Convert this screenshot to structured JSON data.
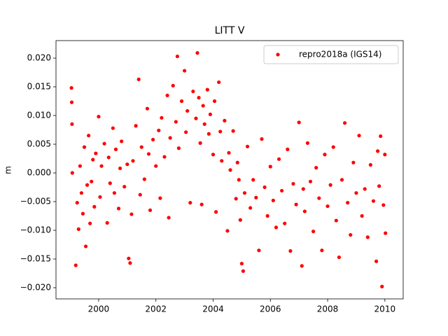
{
  "chart_data": {
    "type": "scatter",
    "title": "LITT V",
    "y_label": "m",
    "legend_position": "upper right",
    "xlim": [
      1998.51,
      2010.64
    ],
    "ylim": [
      -0.02195,
      0.02305
    ],
    "xticks": [
      2000,
      2002,
      2004,
      2006,
      2008,
      2010
    ],
    "yticks": [
      {
        "value": -0.02,
        "label": "−0.020"
      },
      {
        "value": -0.015,
        "label": "−0.015"
      },
      {
        "value": -0.01,
        "label": "−0.010"
      },
      {
        "value": -0.005,
        "label": "−0.005"
      },
      {
        "value": 0,
        "label": "0.000"
      },
      {
        "value": 0.005,
        "label": "0.005"
      },
      {
        "value": 0.01,
        "label": "0.010"
      },
      {
        "value": 0.015,
        "label": "0.015"
      },
      {
        "value": 0.02,
        "label": "0.020"
      }
    ],
    "series": [
      {
        "name": "repro2018a (IGS14)",
        "color": "#ff0000",
        "x": [
          1999.05,
          1999.06,
          1999.07,
          1999.08,
          1999.2,
          1999.25,
          1999.3,
          1999.35,
          1999.4,
          1999.45,
          1999.5,
          1999.55,
          1999.6,
          1999.65,
          1999.7,
          1999.75,
          1999.8,
          1999.85,
          1999.9,
          2000.0,
          2000.05,
          2000.1,
          2000.2,
          2000.3,
          2000.35,
          2000.4,
          2000.5,
          2000.55,
          2000.6,
          2000.7,
          2000.75,
          2000.8,
          2000.9,
          2001.0,
          2001.05,
          2001.1,
          2001.15,
          2001.2,
          2001.3,
          2001.4,
          2001.45,
          2001.5,
          2001.6,
          2001.7,
          2001.75,
          2001.8,
          2001.9,
          2002.0,
          2002.1,
          2002.15,
          2002.2,
          2002.3,
          2002.4,
          2002.45,
          2002.5,
          2002.6,
          2002.7,
          2002.75,
          2002.8,
          2002.9,
          2003.0,
          2003.05,
          2003.1,
          2003.2,
          2003.3,
          2003.4,
          2003.45,
          2003.5,
          2003.55,
          2003.6,
          2003.65,
          2003.7,
          2003.8,
          2003.85,
          2003.9,
          2004.0,
          2004.05,
          2004.1,
          2004.2,
          2004.25,
          2004.3,
          2004.4,
          2004.5,
          2004.55,
          2004.6,
          2004.7,
          2004.8,
          2004.85,
          2004.9,
          2004.95,
          2005.0,
          2005.05,
          2005.1,
          2005.2,
          2005.3,
          2005.4,
          2005.5,
          2005.6,
          2005.7,
          2005.8,
          2005.9,
          2006.0,
          2006.1,
          2006.2,
          2006.3,
          2006.4,
          2006.5,
          2006.6,
          2006.7,
          2006.8,
          2006.9,
          2007.0,
          2007.1,
          2007.15,
          2007.2,
          2007.3,
          2007.4,
          2007.5,
          2007.6,
          2007.7,
          2007.8,
          2007.9,
          2008.0,
          2008.1,
          2008.2,
          2008.3,
          2008.4,
          2008.5,
          2008.6,
          2008.7,
          2008.8,
          2008.9,
          2009.0,
          2009.1,
          2009.2,
          2009.3,
          2009.4,
          2009.5,
          2009.6,
          2009.7,
          2009.75,
          2009.8,
          2009.85,
          2009.9,
          2009.95,
          2010.0,
          2010.02
        ],
        "values": [
          0.0148,
          0.0123,
          0.0085,
          0.0,
          -0.0161,
          -0.0052,
          -0.0098,
          0.0012,
          -0.0035,
          -0.0071,
          0.0045,
          -0.0128,
          -0.0021,
          0.0065,
          -0.0088,
          -0.0015,
          0.0023,
          -0.0059,
          0.0034,
          0.0098,
          -0.0042,
          0.0012,
          0.0051,
          -0.0087,
          0.0027,
          -0.0018,
          0.0078,
          -0.0035,
          0.0041,
          -0.0062,
          0.0008,
          0.0055,
          -0.0024,
          0.0015,
          -0.0149,
          -0.0157,
          -0.0072,
          0.0021,
          0.0082,
          0.0163,
          -0.0038,
          0.0045,
          -0.0011,
          0.0112,
          0.0033,
          -0.0065,
          0.0058,
          0.0012,
          0.0074,
          -0.0044,
          0.0096,
          0.0028,
          0.0135,
          -0.0078,
          0.0061,
          0.0152,
          0.0089,
          0.0203,
          0.0043,
          0.0125,
          0.0178,
          0.0071,
          0.0108,
          -0.0052,
          0.0142,
          0.0095,
          0.0209,
          0.0131,
          0.0052,
          -0.0055,
          0.0117,
          0.0085,
          0.0145,
          0.0068,
          0.0102,
          0.0032,
          0.0125,
          -0.0068,
          0.0158,
          0.0072,
          0.0021,
          0.0091,
          -0.0101,
          0.0035,
          0.0005,
          0.0073,
          -0.0045,
          0.0018,
          -0.0012,
          -0.0082,
          -0.0158,
          -0.0171,
          -0.0035,
          0.0046,
          -0.0061,
          -0.0012,
          -0.0043,
          -0.0135,
          0.0059,
          -0.0025,
          -0.0075,
          0.0011,
          -0.0048,
          -0.0095,
          0.0024,
          -0.0031,
          -0.0088,
          0.0041,
          -0.0136,
          -0.0019,
          -0.0055,
          0.0088,
          -0.0162,
          -0.0028,
          -0.0067,
          0.0052,
          -0.0015,
          -0.0102,
          0.0009,
          -0.0044,
          -0.0135,
          0.0032,
          -0.0058,
          -0.0021,
          0.0045,
          -0.0083,
          -0.0147,
          -0.0012,
          0.0087,
          -0.0052,
          -0.0108,
          0.0018,
          -0.0035,
          0.0065,
          -0.0075,
          -0.0028,
          -0.0112,
          0.0014,
          -0.0049,
          -0.0154,
          0.0038,
          -0.0023,
          0.0064,
          -0.0198,
          -0.0056,
          0.0032,
          -0.0105
        ]
      }
    ]
  }
}
